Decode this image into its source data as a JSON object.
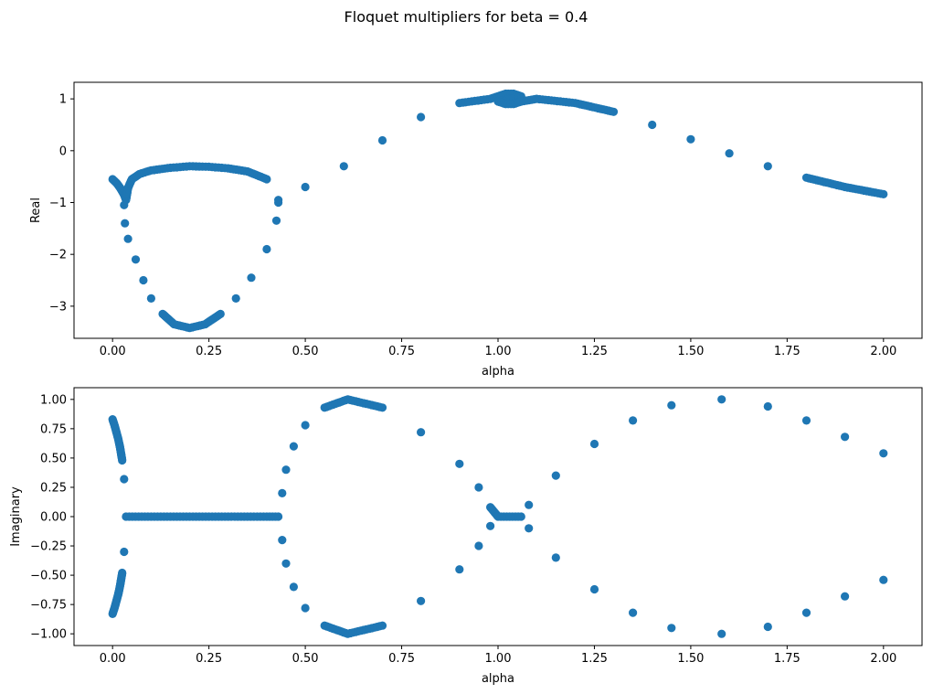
{
  "suptitle": "Floquet multipliers for beta = 0.4",
  "colors": {
    "marker": "#1f77b4",
    "axes": "#000000",
    "background": "#ffffff"
  },
  "chart_data": [
    {
      "type": "scatter",
      "title": "",
      "xlabel": "alpha",
      "ylabel": "Real",
      "xlim": [
        -0.1,
        2.1
      ],
      "ylim": [
        -3.62,
        1.32
      ],
      "xticks": [
        0.0,
        0.25,
        0.5,
        0.75,
        1.0,
        1.25,
        1.5,
        1.75,
        2.0
      ],
      "xtick_labels": [
        "0.00",
        "0.25",
        "0.50",
        "0.75",
        "1.00",
        "1.25",
        "1.50",
        "1.75",
        "2.00"
      ],
      "yticks": [
        1,
        0,
        -1,
        -2,
        -3
      ],
      "ytick_labels": [
        "1",
        "0",
        "−1",
        "−2",
        "−3"
      ],
      "grid": false,
      "legend": "none",
      "series": [
        {
          "points": [
            [
              0.0,
              -0.55
            ],
            [
              0.01,
              -0.62
            ],
            [
              0.02,
              -0.72
            ],
            [
              0.03,
              -0.85
            ],
            [
              0.035,
              -0.95
            ],
            [
              0.04,
              -0.72
            ],
            [
              0.05,
              -0.55
            ],
            [
              0.07,
              -0.45
            ],
            [
              0.1,
              -0.38
            ],
            [
              0.15,
              -0.33
            ],
            [
              0.2,
              -0.3
            ],
            [
              0.25,
              -0.31
            ],
            [
              0.3,
              -0.34
            ],
            [
              0.35,
              -0.4
            ],
            [
              0.4,
              -0.55
            ],
            [
              0.43,
              -0.95
            ],
            [
              0.03,
              -1.05
            ],
            [
              0.032,
              -1.4
            ],
            [
              0.04,
              -1.7
            ],
            [
              0.06,
              -2.1
            ],
            [
              0.08,
              -2.5
            ],
            [
              0.1,
              -2.85
            ],
            [
              0.13,
              -3.15
            ],
            [
              0.16,
              -3.35
            ],
            [
              0.2,
              -3.42
            ],
            [
              0.24,
              -3.35
            ],
            [
              0.28,
              -3.15
            ],
            [
              0.32,
              -2.85
            ],
            [
              0.36,
              -2.45
            ],
            [
              0.4,
              -1.9
            ],
            [
              0.425,
              -1.35
            ],
            [
              0.43,
              -1.0
            ],
            [
              0.5,
              -0.7
            ],
            [
              0.6,
              -0.3
            ],
            [
              0.7,
              0.2
            ],
            [
              0.8,
              0.65
            ],
            [
              0.9,
              0.92
            ],
            [
              0.98,
              1.0
            ],
            [
              1.0,
              1.05
            ],
            [
              1.02,
              1.1
            ],
            [
              1.04,
              1.1
            ],
            [
              1.06,
              1.05
            ],
            [
              1.0,
              0.95
            ],
            [
              1.02,
              0.9
            ],
            [
              1.04,
              0.9
            ],
            [
              1.06,
              0.95
            ],
            [
              1.1,
              1.0
            ],
            [
              1.2,
              0.92
            ],
            [
              1.3,
              0.75
            ],
            [
              1.4,
              0.5
            ],
            [
              1.5,
              0.22
            ],
            [
              1.6,
              -0.05
            ],
            [
              1.7,
              -0.3
            ],
            [
              1.8,
              -0.52
            ],
            [
              1.9,
              -0.7
            ],
            [
              2.0,
              -0.84
            ]
          ]
        }
      ]
    },
    {
      "type": "scatter",
      "title": "",
      "xlabel": "alpha",
      "ylabel": "Imaginary",
      "xlim": [
        -0.1,
        2.1
      ],
      "ylim": [
        -1.1,
        1.1
      ],
      "xticks": [
        0.0,
        0.25,
        0.5,
        0.75,
        1.0,
        1.25,
        1.5,
        1.75,
        2.0
      ],
      "xtick_labels": [
        "0.00",
        "0.25",
        "0.50",
        "0.75",
        "1.00",
        "1.25",
        "1.50",
        "1.75",
        "2.00"
      ],
      "yticks": [
        1.0,
        0.75,
        0.5,
        0.25,
        0.0,
        -0.25,
        -0.5,
        -0.75,
        -1.0
      ],
      "ytick_labels": [
        "1.00",
        "0.75",
        "0.50",
        "0.25",
        "0.00",
        "−0.25",
        "−0.50",
        "−0.75",
        "−1.00"
      ],
      "grid": false,
      "legend": "none",
      "series": [
        {
          "points": [
            [
              0.0,
              0.83
            ],
            [
              0.005,
              0.78
            ],
            [
              0.01,
              0.72
            ],
            [
              0.015,
              0.66
            ],
            [
              0.02,
              0.58
            ],
            [
              0.025,
              0.48
            ],
            [
              0.03,
              0.32
            ],
            [
              0.0,
              -0.83
            ],
            [
              0.005,
              -0.78
            ],
            [
              0.01,
              -0.72
            ],
            [
              0.015,
              -0.66
            ],
            [
              0.02,
              -0.58
            ],
            [
              0.025,
              -0.48
            ],
            [
              0.03,
              -0.3
            ],
            [
              0.035,
              0.0
            ],
            [
              0.1,
              0.0
            ],
            [
              0.2,
              0.0
            ],
            [
              0.3,
              0.0
            ],
            [
              0.4,
              0.0
            ],
            [
              0.43,
              0.0
            ],
            [
              0.44,
              0.2
            ],
            [
              0.45,
              0.4
            ],
            [
              0.47,
              0.6
            ],
            [
              0.5,
              0.78
            ],
            [
              0.55,
              0.93
            ],
            [
              0.61,
              1.0
            ],
            [
              0.7,
              0.93
            ],
            [
              0.8,
              0.72
            ],
            [
              0.9,
              0.45
            ],
            [
              0.95,
              0.25
            ],
            [
              0.98,
              0.08
            ],
            [
              1.0,
              0.0
            ],
            [
              1.03,
              0.0
            ],
            [
              1.06,
              0.0
            ],
            [
              0.44,
              -0.2
            ],
            [
              0.45,
              -0.4
            ],
            [
              0.47,
              -0.6
            ],
            [
              0.5,
              -0.78
            ],
            [
              0.55,
              -0.93
            ],
            [
              0.61,
              -1.0
            ],
            [
              0.7,
              -0.93
            ],
            [
              0.8,
              -0.72
            ],
            [
              0.9,
              -0.45
            ],
            [
              0.95,
              -0.25
            ],
            [
              0.98,
              -0.08
            ],
            [
              1.08,
              0.1
            ],
            [
              1.15,
              0.35
            ],
            [
              1.25,
              0.62
            ],
            [
              1.35,
              0.82
            ],
            [
              1.45,
              0.95
            ],
            [
              1.58,
              1.0
            ],
            [
              1.7,
              0.94
            ],
            [
              1.8,
              0.82
            ],
            [
              1.9,
              0.68
            ],
            [
              2.0,
              0.54
            ],
            [
              1.08,
              -0.1
            ],
            [
              1.15,
              -0.35
            ],
            [
              1.25,
              -0.62
            ],
            [
              1.35,
              -0.82
            ],
            [
              1.45,
              -0.95
            ],
            [
              1.58,
              -1.0
            ],
            [
              1.7,
              -0.94
            ],
            [
              1.8,
              -0.82
            ],
            [
              1.9,
              -0.68
            ],
            [
              2.0,
              -0.54
            ]
          ]
        }
      ]
    }
  ]
}
